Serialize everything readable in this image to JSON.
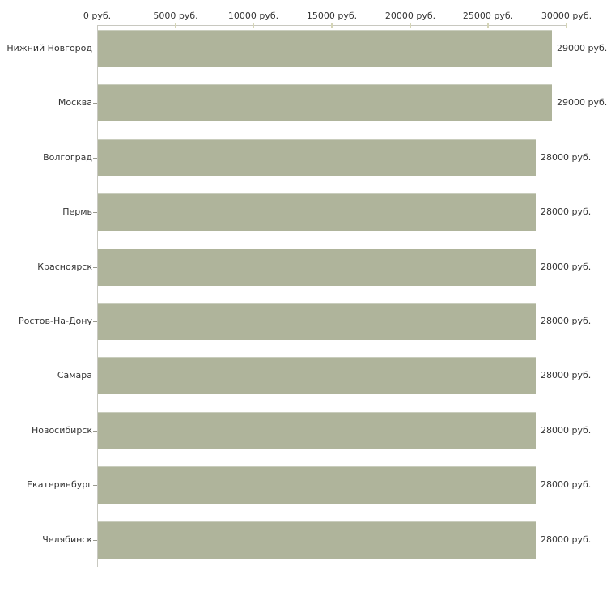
{
  "chart_data": {
    "type": "bar",
    "orientation": "horizontal",
    "categories": [
      "Нижний Новгород",
      "Москва",
      "Волгоград",
      "Пермь",
      "Красноярск",
      "Ростов-На-Дону",
      "Самара",
      "Новосибирск",
      "Екатеринбург",
      "Челябинск"
    ],
    "values": [
      29000,
      29000,
      28000,
      28000,
      28000,
      28000,
      28000,
      28000,
      28000,
      28000
    ],
    "value_labels": [
      "29000 руб.",
      "29000 руб.",
      "28000 руб.",
      "28000 руб.",
      "28000 руб.",
      "28000 руб.",
      "28000 руб.",
      "28000 руб.",
      "28000 руб.",
      "28000 руб."
    ],
    "x_ticks": [
      0,
      5000,
      10000,
      15000,
      20000,
      25000,
      30000
    ],
    "x_tick_labels": [
      "0 руб.",
      "5000 руб.",
      "10000 руб.",
      "15000 руб.",
      "20000 руб.",
      "25000 руб.",
      "30000 руб."
    ],
    "xlim": [
      0,
      30000
    ],
    "unit": "руб.",
    "grid": false,
    "legend": null,
    "colors": {
      "bar_fill": "#afb49b",
      "bar_top_edge": "#c9cdbd",
      "axis_line": "#c8c8c0",
      "x_tick_mark": "#d4d4b6",
      "y_tick_mark": "#99998f",
      "text": "#333333",
      "background": "#ffffff"
    }
  }
}
